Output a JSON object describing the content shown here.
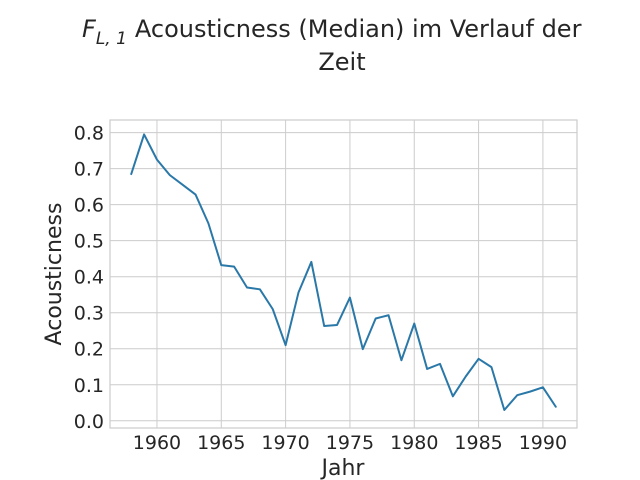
{
  "chart_data": {
    "type": "line",
    "title_math_base": "F",
    "title_math_sub": "L, 1",
    "title_line1": "Acousticness (Median) im Verlauf der",
    "title_line2": "Zeit",
    "xlabel": "Jahr",
    "ylabel": "Acousticness",
    "xlim": [
      1956.35,
      1992.65
    ],
    "ylim": [
      -0.02,
      0.835
    ],
    "x_ticks": [
      1960,
      1965,
      1970,
      1975,
      1980,
      1985,
      1990
    ],
    "y_ticks": [
      0.0,
      0.1,
      0.2,
      0.3,
      0.4,
      0.5,
      0.6,
      0.7,
      0.8
    ],
    "grid": true,
    "color": "#2a78a8",
    "series": [
      {
        "x": [
          1958,
          1959,
          1960,
          1961,
          1962,
          1963,
          1964,
          1965,
          1966,
          1967,
          1968,
          1969,
          1970,
          1971,
          1972,
          1973,
          1974,
          1975,
          1976,
          1977,
          1978,
          1979,
          1980,
          1981,
          1982,
          1983,
          1984,
          1985,
          1986,
          1987,
          1988,
          1989,
          1990,
          1991
        ],
        "values": [
          0.685,
          0.795,
          0.725,
          0.682,
          0.655,
          0.628,
          0.548,
          0.432,
          0.428,
          0.37,
          0.365,
          0.31,
          0.21,
          0.356,
          0.441,
          0.263,
          0.266,
          0.342,
          0.199,
          0.284,
          0.293,
          0.168,
          0.27,
          0.144,
          0.158,
          0.068,
          0.123,
          0.172,
          0.149,
          0.03,
          0.071,
          0.081,
          0.093,
          0.039
        ]
      }
    ]
  }
}
